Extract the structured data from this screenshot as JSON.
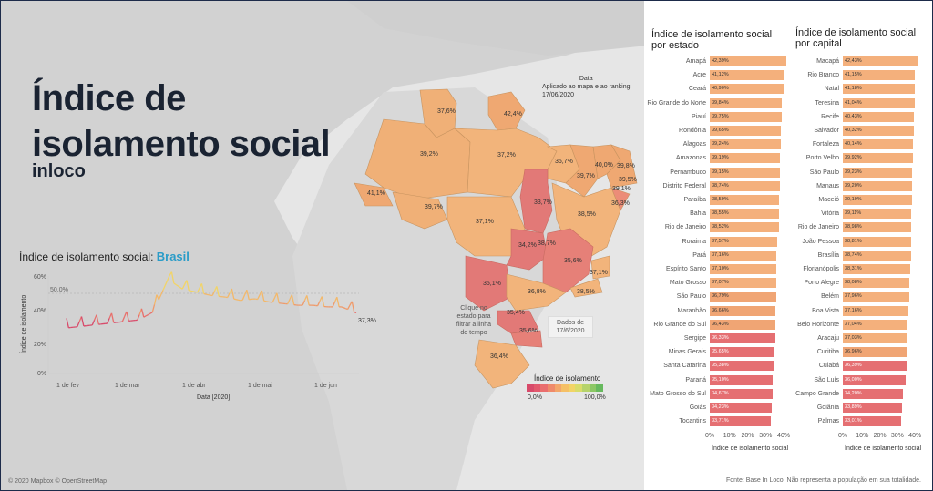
{
  "title_line1": "Índice de",
  "title_line2": "isolamento social",
  "subtitle": "inloco",
  "line_chart": {
    "title_prefix": "Índice de isolamento social: ",
    "title_highlight": "Brasil",
    "ylabel": "Índice de isolamento",
    "xlabel": "Data [2020]",
    "yticks": [
      "60%",
      "40%",
      "20%",
      "0%"
    ],
    "xticks": [
      "1 de fev",
      "1 de mar",
      "1 de abr",
      "1 de mai",
      "1 de jun"
    ],
    "ref_label": "50,0%",
    "end_label": "37,3%"
  },
  "chart_data": {
    "type": "line",
    "title": "Índice de isolamento social: Brasil",
    "xlabel": "Data [2020]",
    "ylabel": "Índice de isolamento",
    "ylim": [
      0,
      65
    ],
    "reference_line": 50,
    "x": [
      "2020-02-01",
      "2020-02-08",
      "2020-02-15",
      "2020-02-22",
      "2020-03-01",
      "2020-03-08",
      "2020-03-15",
      "2020-03-22",
      "2020-03-29",
      "2020-04-05",
      "2020-04-12",
      "2020-04-19",
      "2020-04-26",
      "2020-05-03",
      "2020-05-10",
      "2020-05-17",
      "2020-05-24",
      "2020-05-31",
      "2020-06-07",
      "2020-06-14",
      "2020-06-17"
    ],
    "series": [
      {
        "values": [
          28,
          29,
          30,
          31,
          32,
          33,
          38,
          58,
          52,
          50,
          48,
          47,
          45,
          46,
          44,
          43,
          42,
          42,
          41,
          41,
          37.3
        ]
      }
    ]
  },
  "map": {
    "date_title": "Data",
    "date_sub": "Aplicado ao mapa e ao ranking",
    "date_value": "17/06/2020",
    "hint": "Clique no estado para filtrar a linha do tempo",
    "tooltip": "Dados de 17/6/2020",
    "legend_title": "Índice de isolamento",
    "legend_min": "0,0%",
    "legend_max": "100,0%",
    "legend_colors": [
      "#d84a6a",
      "#e2596d",
      "#ea6e6e",
      "#ef8a6a",
      "#f3a66a",
      "#f5c066",
      "#f2d466",
      "#d9dc6a",
      "#b6d36b",
      "#8cc765",
      "#67b95e"
    ],
    "labels": [
      "37,6%",
      "42,4%",
      "39,2%",
      "37,2%",
      "36,7%",
      "40,0%",
      "39,8%",
      "39,7%",
      "39,5%",
      "39,1%",
      "36,3%",
      "41,1%",
      "39,7%",
      "33,7%",
      "37,1%",
      "38,5%",
      "34,2%",
      "38,7%",
      "35,6%",
      "37,1%",
      "35,1%",
      "36,8%",
      "38,5%",
      "35,4%",
      "35,6%",
      "36,4%"
    ],
    "credit": "© 2020 Mapbox © OpenStreetMap",
    "footer": "Fonte: Base In Loco. Não representa a população em sua totalidade."
  },
  "states": {
    "title": "Índice de isolamento social por estado",
    "axis_title": "Índice de isolamento social",
    "ticks": [
      "0%",
      "10%",
      "20%",
      "30%",
      "40%"
    ],
    "rows": [
      {
        "name": "Amapá",
        "value": "42,39%",
        "v": 42.39
      },
      {
        "name": "Acre",
        "value": "41,12%",
        "v": 41.12
      },
      {
        "name": "Ceará",
        "value": "40,90%",
        "v": 40.9
      },
      {
        "name": "Rio Grande do Norte",
        "value": "39,84%",
        "v": 39.84
      },
      {
        "name": "Piauí",
        "value": "39,75%",
        "v": 39.75
      },
      {
        "name": "Rondônia",
        "value": "39,65%",
        "v": 39.65
      },
      {
        "name": "Alagoas",
        "value": "39,24%",
        "v": 39.24
      },
      {
        "name": "Amazonas",
        "value": "39,19%",
        "v": 39.19
      },
      {
        "name": "Pernambuco",
        "value": "39,15%",
        "v": 39.15
      },
      {
        "name": "Distrito Federal",
        "value": "38,74%",
        "v": 38.74
      },
      {
        "name": "Paraíba",
        "value": "38,59%",
        "v": 38.59
      },
      {
        "name": "Bahia",
        "value": "38,55%",
        "v": 38.55
      },
      {
        "name": "Rio de Janeiro",
        "value": "38,52%",
        "v": 38.52
      },
      {
        "name": "Roraima",
        "value": "37,57%",
        "v": 37.57
      },
      {
        "name": "Pará",
        "value": "37,16%",
        "v": 37.16
      },
      {
        "name": "Espírito Santo",
        "value": "37,10%",
        "v": 37.1
      },
      {
        "name": "Mato Grosso",
        "value": "37,07%",
        "v": 37.07
      },
      {
        "name": "São Paulo",
        "value": "36,79%",
        "v": 36.79
      },
      {
        "name": "Maranhão",
        "value": "36,66%",
        "v": 36.66
      },
      {
        "name": "Rio Grande do Sul",
        "value": "36,43%",
        "v": 36.43
      },
      {
        "name": "Sergipe",
        "value": "36,33%",
        "v": 36.33
      },
      {
        "name": "Minas Gerais",
        "value": "35,65%",
        "v": 35.65
      },
      {
        "name": "Santa Catarina",
        "value": "35,38%",
        "v": 35.38
      },
      {
        "name": "Paraná",
        "value": "35,10%",
        "v": 35.1
      },
      {
        "name": "Mato Grosso do Sul",
        "value": "34,67%",
        "v": 34.67
      },
      {
        "name": "Goiás",
        "value": "34,23%",
        "v": 34.23
      },
      {
        "name": "Tocantins",
        "value": "33,71%",
        "v": 33.71
      }
    ]
  },
  "capitals": {
    "title": "Índice de isolamento social por capital",
    "axis_title": "Índice de isolamento social",
    "ticks": [
      "0%",
      "10%",
      "20%",
      "30%",
      "40%"
    ],
    "rows": [
      {
        "name": "Macapá",
        "value": "42,43%",
        "v": 42.43
      },
      {
        "name": "Rio Branco",
        "value": "41,15%",
        "v": 41.15
      },
      {
        "name": "Natal",
        "value": "41,18%",
        "v": 41.18
      },
      {
        "name": "Teresina",
        "value": "41,04%",
        "v": 41.04
      },
      {
        "name": "Recife",
        "value": "40,43%",
        "v": 40.43
      },
      {
        "name": "Salvador",
        "value": "40,32%",
        "v": 40.32
      },
      {
        "name": "Fortaleza",
        "value": "40,14%",
        "v": 40.14
      },
      {
        "name": "Porto Velho",
        "value": "39,92%",
        "v": 39.92
      },
      {
        "name": "São Paulo",
        "value": "39,23%",
        "v": 39.23
      },
      {
        "name": "Manaus",
        "value": "39,20%",
        "v": 39.2
      },
      {
        "name": "Maceió",
        "value": "39,19%",
        "v": 39.19
      },
      {
        "name": "Vitória",
        "value": "39,11%",
        "v": 39.11
      },
      {
        "name": "Rio de Janeiro",
        "value": "38,98%",
        "v": 38.98
      },
      {
        "name": "João Pessoa",
        "value": "38,81%",
        "v": 38.81
      },
      {
        "name": "Brasília",
        "value": "38,74%",
        "v": 38.74
      },
      {
        "name": "Florianópolis",
        "value": "38,31%",
        "v": 38.31
      },
      {
        "name": "Porto Alegre",
        "value": "38,08%",
        "v": 38.08
      },
      {
        "name": "Belém",
        "value": "37,96%",
        "v": 37.96
      },
      {
        "name": "Boa Vista",
        "value": "37,16%",
        "v": 37.16
      },
      {
        "name": "Belo Horizonte",
        "value": "37,04%",
        "v": 37.04
      },
      {
        "name": "Aracaju",
        "value": "37,03%",
        "v": 37.03
      },
      {
        "name": "Curitiba",
        "value": "36,96%",
        "v": 36.96
      },
      {
        "name": "Cuiabá",
        "value": "36,39%",
        "v": 36.39
      },
      {
        "name": "São Luís",
        "value": "36,00%",
        "v": 36.0
      },
      {
        "name": "Campo Grande",
        "value": "34,20%",
        "v": 34.2
      },
      {
        "name": "Goiânia",
        "value": "33,89%",
        "v": 33.89
      },
      {
        "name": "Palmas",
        "value": "33,01%",
        "v": 33.01
      }
    ]
  }
}
